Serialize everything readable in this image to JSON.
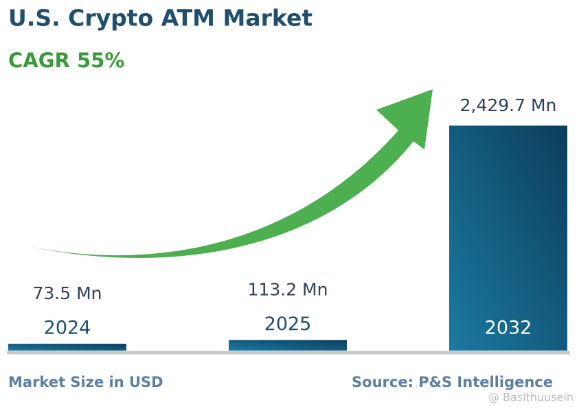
{
  "chart_data": {
    "type": "bar",
    "title": "U.S. Crypto ATM Market",
    "subtitle": "CAGR 55%",
    "categories": [
      "2024",
      "2025",
      "2032"
    ],
    "values": [
      73.5,
      113.2,
      2429.7
    ],
    "value_labels": [
      "73.5 Mn",
      "113.2 Mn",
      "2,429.7 Mn"
    ],
    "color": "#1b7aa0",
    "x_label": "Market Size in USD",
    "source": "Source: P&S Intelligence",
    "watermark": "@ Basithuusein"
  }
}
